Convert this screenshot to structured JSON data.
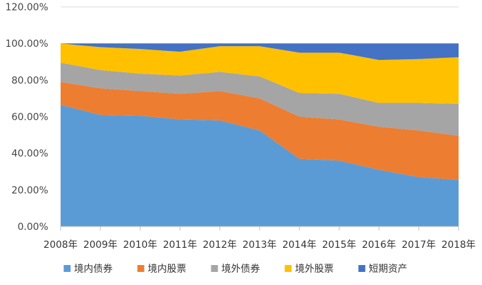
{
  "chart_data": {
    "type": "area",
    "stacked": true,
    "title": "",
    "xlabel": "",
    "ylabel": "",
    "x": [
      "2008年",
      "2009年",
      "2010年",
      "2011年",
      "2012年",
      "2013年",
      "2014年",
      "2015年",
      "2016年",
      "2017年",
      "2018年"
    ],
    "ylim": [
      0,
      120
    ],
    "yticks": [
      "0.00%",
      "20.00%",
      "40.00%",
      "60.00%",
      "80.00%",
      "100.00%",
      "120.00%"
    ],
    "grid": true,
    "legend_position": "bottom",
    "series": [
      {
        "name": "境内债券",
        "color": "#5b9bd5",
        "values": [
          66.5,
          61.0,
          60.5,
          58.5,
          58.0,
          52.5,
          37.0,
          36.0,
          31.0,
          27.0,
          25.5
        ]
      },
      {
        "name": "境内股票",
        "color": "#ed7d31",
        "values": [
          12.5,
          14.5,
          13.5,
          14.0,
          16.0,
          17.5,
          23.0,
          22.5,
          23.5,
          25.5,
          24.0
        ]
      },
      {
        "name": "境外债券",
        "color": "#a5a5a5",
        "values": [
          10.5,
          10.0,
          9.5,
          10.0,
          10.5,
          12.0,
          13.0,
          14.0,
          13.0,
          15.0,
          17.5
        ]
      },
      {
        "name": "境外股票",
        "color": "#ffc000",
        "values": [
          10.5,
          12.5,
          13.5,
          13.0,
          14.0,
          16.5,
          22.0,
          22.5,
          23.5,
          24.0,
          25.5
        ]
      },
      {
        "name": "短期资产",
        "color": "#4472c4",
        "values": [
          0.0,
          2.0,
          3.0,
          4.5,
          1.5,
          1.5,
          5.0,
          5.0,
          9.0,
          8.5,
          7.5
        ]
      }
    ]
  }
}
